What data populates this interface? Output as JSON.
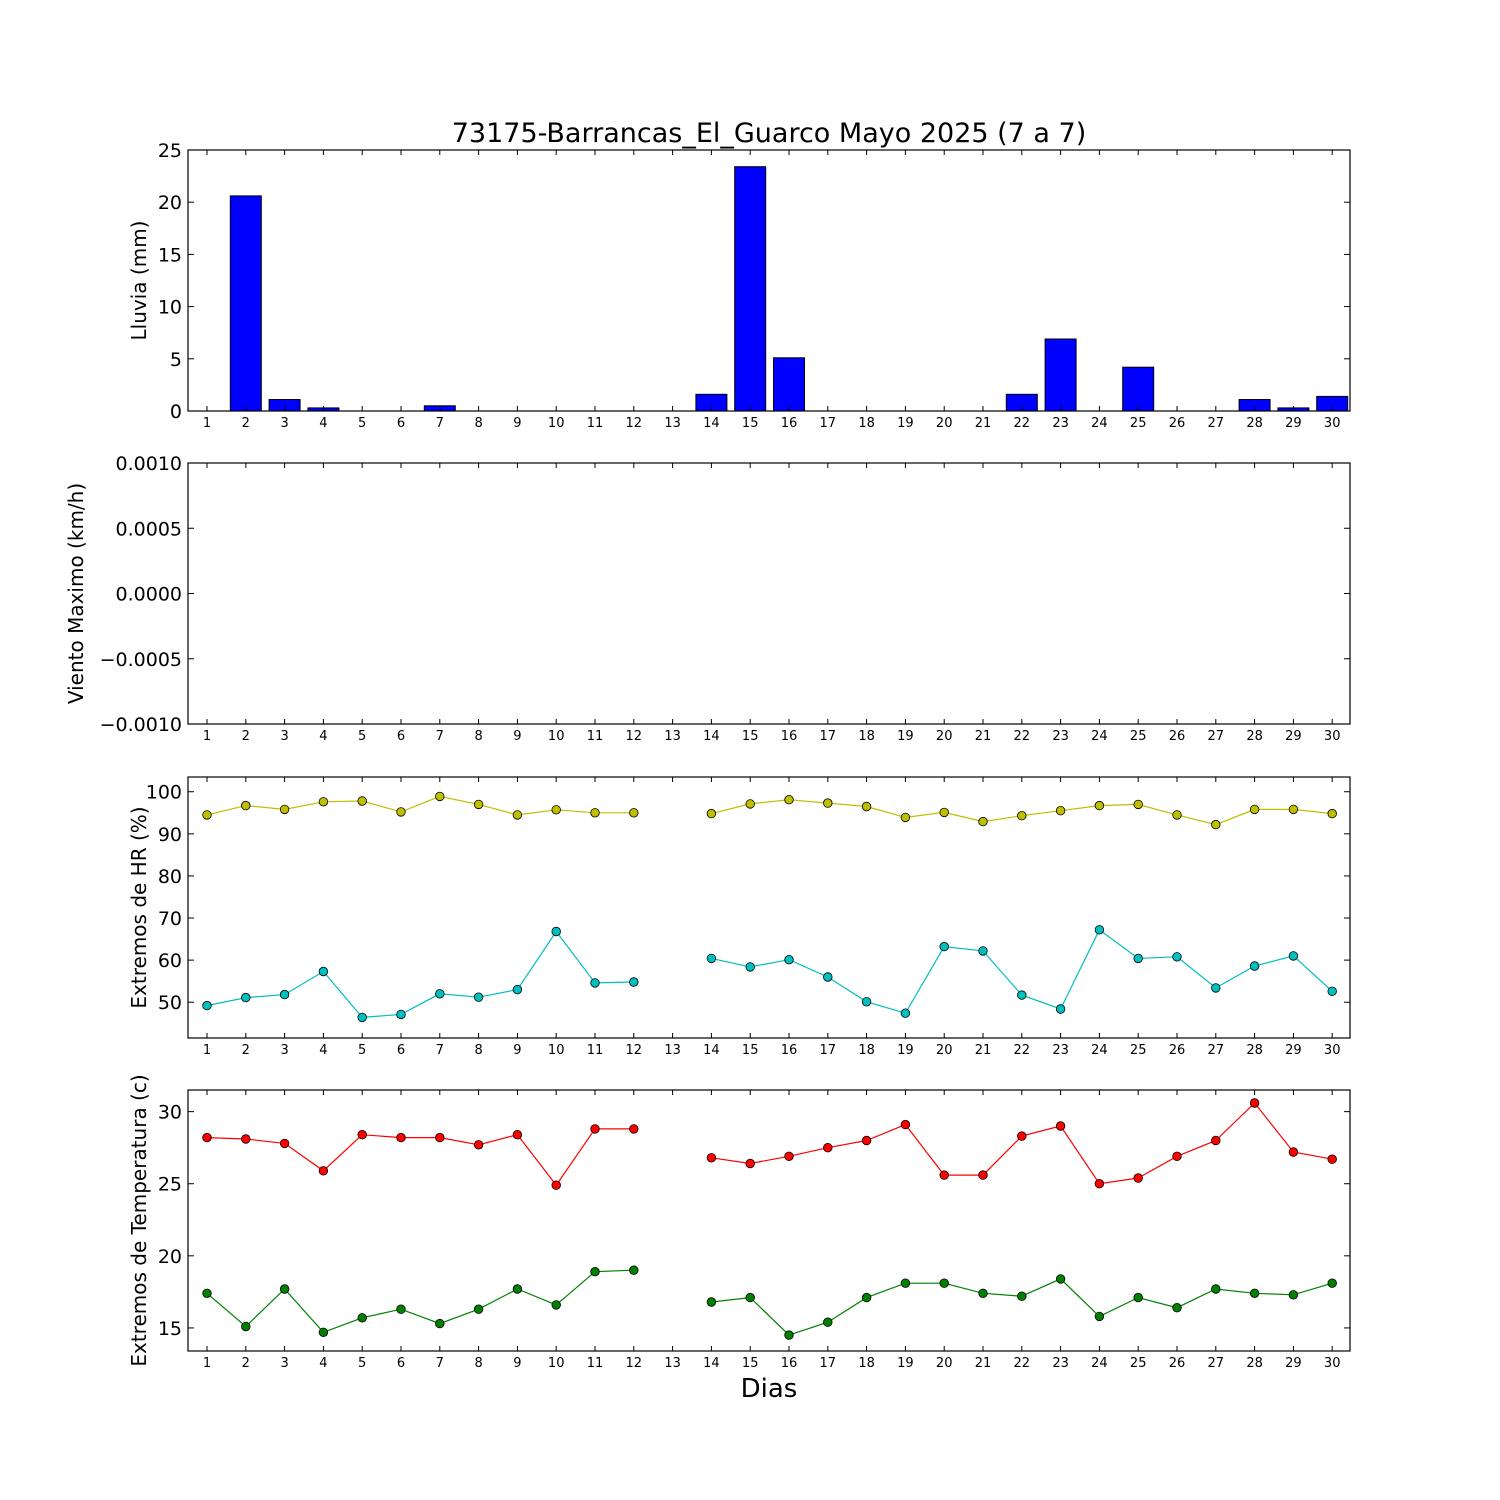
{
  "title": "73175-Barrancas_El_Guarco Mayo 2025  (7 a 7)",
  "xlabel": "Dias",
  "colors": {
    "bar_fill": "#0000ff",
    "hr_max": "#bfbf00",
    "hr_min": "#00bfbf",
    "temp_max": "#ff0000",
    "temp_min": "#008000"
  },
  "chart_data": [
    {
      "type": "bar",
      "id": "lluvia",
      "ylabel": "Lluvia (mm)",
      "ylim": [
        0,
        25
      ],
      "yticks": [
        "0",
        "5",
        "10",
        "15",
        "20",
        "25"
      ],
      "categories": [
        "1",
        "2",
        "3",
        "4",
        "5",
        "6",
        "7",
        "8",
        "9",
        "10",
        "11",
        "12",
        "13",
        "14",
        "15",
        "16",
        "17",
        "18",
        "19",
        "20",
        "21",
        "22",
        "23",
        "24",
        "25",
        "26",
        "27",
        "28",
        "29",
        "30"
      ],
      "values": [
        0,
        20.6,
        1.1,
        0.3,
        0,
        0,
        0.5,
        0,
        0,
        0,
        0,
        0,
        0,
        1.6,
        23.4,
        5.1,
        0,
        0,
        0,
        0,
        0,
        1.6,
        6.9,
        0,
        4.2,
        0,
        0,
        1.1,
        0.3,
        1.4
      ],
      "grid": false
    },
    {
      "type": "line",
      "id": "viento",
      "ylabel": "Viento Maximo (km/h)",
      "ylim": [
        -0.001,
        0.001
      ],
      "yticks": [
        "−0.0010",
        "−0.0005",
        "0.0000",
        "0.0005",
        "0.0010"
      ],
      "categories": [
        "1",
        "2",
        "3",
        "4",
        "5",
        "6",
        "7",
        "8",
        "9",
        "10",
        "11",
        "12",
        "13",
        "14",
        "15",
        "16",
        "17",
        "18",
        "19",
        "20",
        "21",
        "22",
        "23",
        "24",
        "25",
        "26",
        "27",
        "28",
        "29",
        "30"
      ],
      "series": [],
      "grid": false
    },
    {
      "type": "line",
      "id": "hr",
      "ylabel": "Extremos de HR (%)",
      "ylim": [
        41.5,
        103.5
      ],
      "yticks": [
        "50",
        "60",
        "70",
        "80",
        "90",
        "100"
      ],
      "categories": [
        "1",
        "2",
        "3",
        "4",
        "5",
        "6",
        "7",
        "8",
        "9",
        "10",
        "11",
        "12",
        "13",
        "14",
        "15",
        "16",
        "17",
        "18",
        "19",
        "20",
        "21",
        "22",
        "23",
        "24",
        "25",
        "26",
        "27",
        "28",
        "29",
        "30"
      ],
      "series": [
        {
          "values": [
            94.5,
            96.7,
            95.8,
            97.6,
            97.8,
            95.2,
            98.9,
            97.0,
            94.5,
            95.7,
            95.0,
            95.0,
            null,
            94.8,
            97.1,
            98.1,
            97.3,
            96.5,
            93.9,
            95.1,
            92.9,
            94.3,
            95.5,
            96.7,
            97.0,
            94.5,
            92.2,
            95.8,
            95.8,
            94.8
          ],
          "color_key": "hr_max"
        },
        {
          "values": [
            49.2,
            51.1,
            51.8,
            57.3,
            46.4,
            47.1,
            52.0,
            51.2,
            53.0,
            66.8,
            54.6,
            54.8,
            null,
            60.4,
            58.4,
            60.1,
            56.0,
            50.1,
            47.4,
            63.2,
            62.2,
            51.7,
            48.4,
            67.2,
            60.4,
            60.8,
            53.4,
            58.6,
            61.0,
            52.6
          ],
          "color_key": "hr_min"
        }
      ],
      "grid": false
    },
    {
      "type": "line",
      "id": "temperatura",
      "ylabel": "Extremos de Temperatura (c)",
      "ylim": [
        13.4,
        31.5
      ],
      "yticks": [
        "15",
        "20",
        "25",
        "30"
      ],
      "categories": [
        "1",
        "2",
        "3",
        "4",
        "5",
        "6",
        "7",
        "8",
        "9",
        "10",
        "11",
        "12",
        "13",
        "14",
        "15",
        "16",
        "17",
        "18",
        "19",
        "20",
        "21",
        "22",
        "23",
        "24",
        "25",
        "26",
        "27",
        "28",
        "29",
        "30"
      ],
      "series": [
        {
          "values": [
            28.2,
            28.1,
            27.8,
            25.9,
            28.4,
            28.2,
            28.2,
            27.7,
            28.4,
            24.9,
            28.8,
            28.8,
            null,
            26.8,
            26.4,
            26.9,
            27.5,
            28.0,
            29.1,
            25.6,
            25.6,
            28.3,
            29.0,
            25.0,
            25.4,
            26.9,
            28.0,
            30.6,
            27.2,
            26.7
          ],
          "color_key": "temp_max"
        },
        {
          "values": [
            17.4,
            15.1,
            17.7,
            14.7,
            15.7,
            16.3,
            15.3,
            16.3,
            17.7,
            16.6,
            18.9,
            19.0,
            null,
            16.8,
            17.1,
            14.5,
            15.4,
            17.1,
            18.1,
            18.1,
            17.4,
            17.2,
            18.4,
            15.8,
            17.1,
            16.4,
            17.7,
            17.4,
            17.3,
            18.1
          ],
          "color_key": "temp_min"
        }
      ],
      "grid": false
    }
  ]
}
